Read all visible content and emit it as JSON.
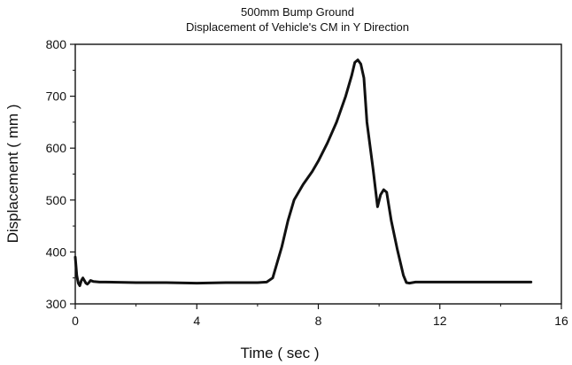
{
  "chart_data": {
    "type": "line",
    "title": "500mm Bump Ground",
    "subtitle": "Displacement of Vehicle's CM in Y Direction",
    "xlabel": "Time ( sec )",
    "ylabel": "Displacement ( mm )",
    "xlim": [
      0,
      16
    ],
    "ylim": [
      300,
      800
    ],
    "xticks": [
      0,
      4,
      8,
      12,
      16
    ],
    "yticks": [
      300,
      400,
      500,
      600,
      700,
      800
    ],
    "grid": false,
    "legend": "none",
    "line_color": "#111111",
    "series": [
      {
        "x": [
          0.0,
          0.05,
          0.1,
          0.15,
          0.2,
          0.25,
          0.3,
          0.35,
          0.4,
          0.45,
          0.5,
          0.6,
          0.8,
          1.0,
          2.0,
          3.0,
          4.0,
          5.0,
          6.0,
          6.3,
          6.5,
          6.8,
          7.0,
          7.2,
          7.5,
          7.8,
          8.0,
          8.3,
          8.6,
          8.9,
          9.1,
          9.2,
          9.3,
          9.4,
          9.5,
          9.6,
          9.8,
          9.95,
          10.05,
          10.15,
          10.25,
          10.4,
          10.6,
          10.8,
          10.9,
          11.0,
          11.2,
          11.5,
          12.0,
          13.0,
          14.0,
          15.0
        ],
        "y": [
          390,
          355,
          340,
          335,
          345,
          350,
          345,
          340,
          338,
          341,
          345,
          343,
          342,
          342,
          341,
          341,
          340,
          341,
          341,
          342,
          350,
          410,
          460,
          500,
          530,
          555,
          575,
          610,
          650,
          700,
          740,
          765,
          770,
          762,
          735,
          650,
          560,
          487,
          510,
          520,
          515,
          460,
          405,
          355,
          341,
          340,
          342,
          342,
          342,
          342,
          342,
          342
        ]
      }
    ]
  }
}
